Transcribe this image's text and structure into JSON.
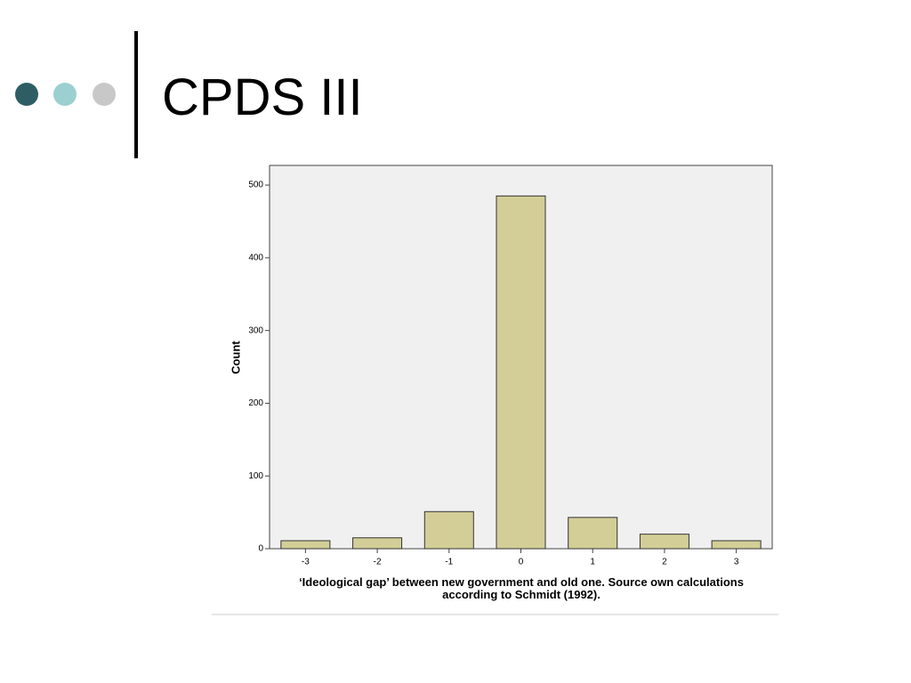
{
  "slide_title": "CPDS III",
  "chart_data": {
    "type": "bar",
    "categories": [
      "-3",
      "-2",
      "-1",
      "0",
      "1",
      "2",
      "3"
    ],
    "values": [
      11,
      15,
      51,
      485,
      43,
      20,
      11
    ],
    "color": "#d3ce97",
    "ylim": [
      0,
      527
    ],
    "yticks": [
      0,
      100,
      200,
      300,
      400,
      500
    ],
    "ylabel": "Count",
    "xlabel": "‘Ideological gap’ between new government and old one. Source own calculations according to Schmidt (1992)."
  }
}
